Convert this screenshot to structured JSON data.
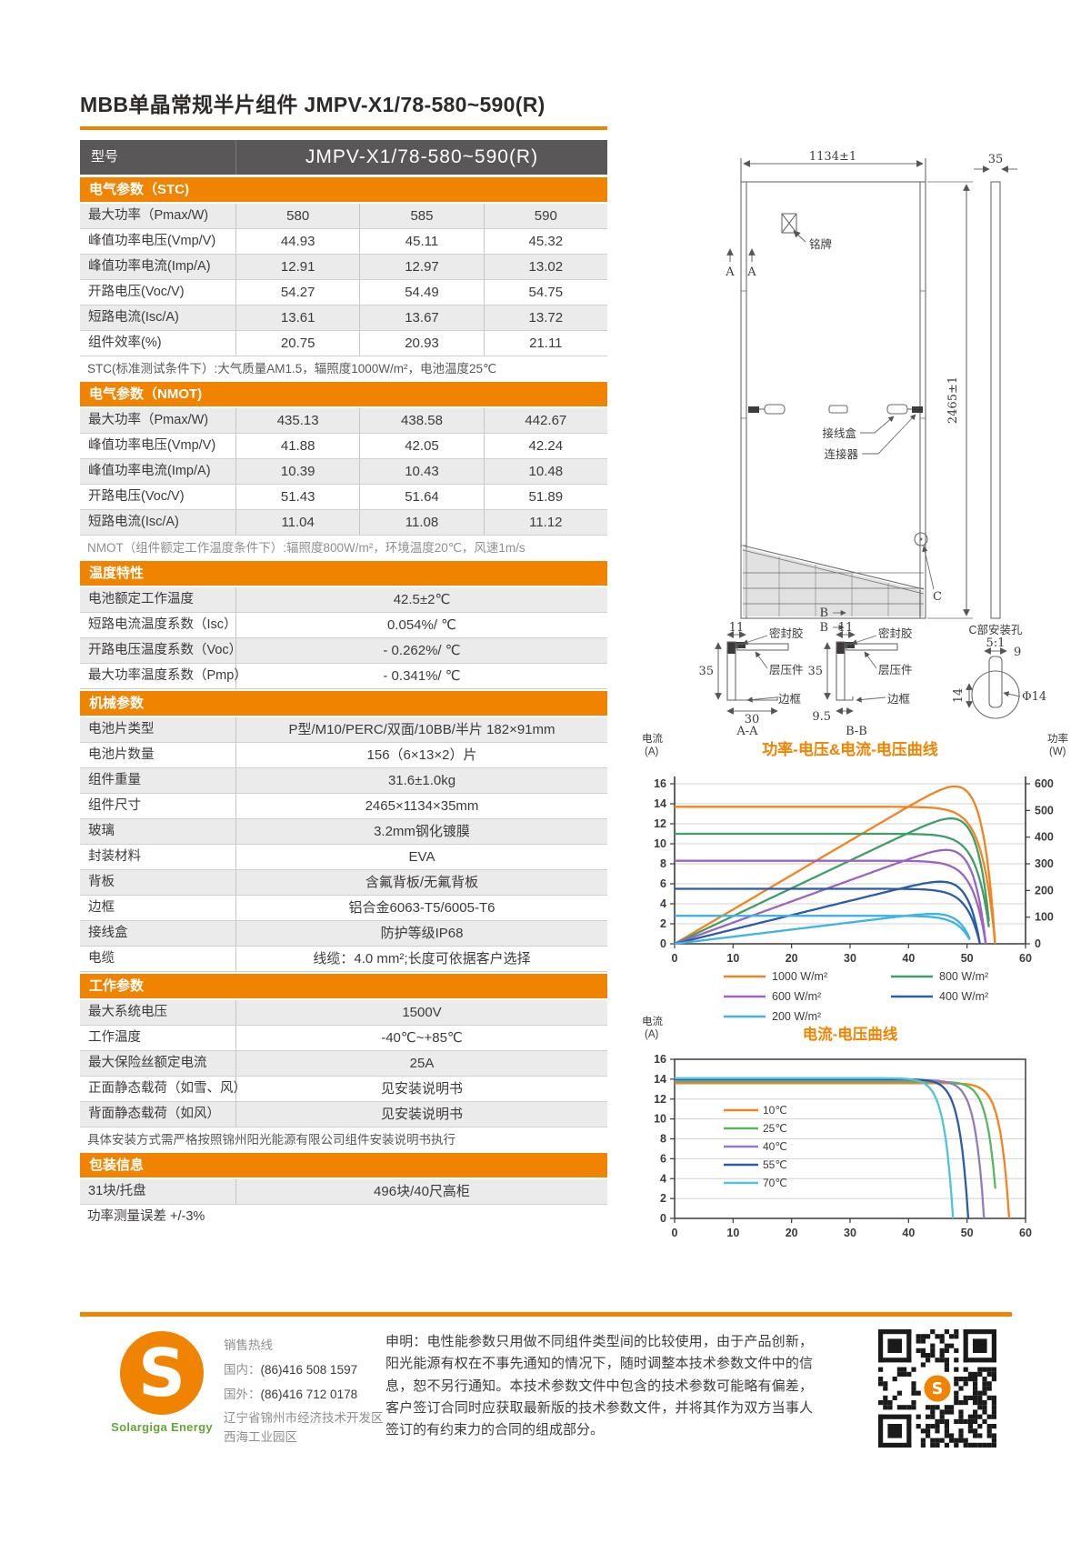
{
  "colors": {
    "accent": "#F08300",
    "header_dark": "#595757",
    "row_gray": "#EBEBEB",
    "text_dark": "#3E3A39",
    "logo_green": "#63A537"
  },
  "page_title": "MBB单晶常规半片组件 JMPV-X1/78-580~590(R)",
  "model_header": {
    "label": "型号",
    "value": "JMPV-X1/78-580~590(R)"
  },
  "spec_sections": [
    {
      "id": "stc",
      "header": "电气参数（STC)",
      "rows": [
        {
          "label": "最大功率（Pmax/W)",
          "values": [
            "580",
            "585",
            "590"
          ]
        },
        {
          "label": "峰值功率电压(Vmp/V)",
          "values": [
            "44.93",
            "45.11",
            "45.32"
          ]
        },
        {
          "label": "峰值功率电流(Imp/A)",
          "values": [
            "12.91",
            "12.97",
            "13.02"
          ]
        },
        {
          "label": "开路电压(Voc/V)",
          "values": [
            "54.27",
            "54.49",
            "54.75"
          ]
        },
        {
          "label": "短路电流(Isc/A)",
          "values": [
            "13.61",
            "13.67",
            "13.72"
          ]
        },
        {
          "label": "组件效率(%)",
          "values": [
            "20.75",
            "20.93",
            "21.11"
          ]
        }
      ],
      "note": "STC(标准测试条件下）:大气质量AM1.5，辐照度1000W/m²，电池温度25℃",
      "note_style": "dark"
    },
    {
      "id": "nmot",
      "header": "电气参数（NMOT)",
      "rows": [
        {
          "label": "最大功率（Pmax/W)",
          "values": [
            "435.13",
            "438.58",
            "442.67"
          ]
        },
        {
          "label": "峰值功率电压(Vmp/V)",
          "values": [
            "41.88",
            "42.05",
            "42.24"
          ]
        },
        {
          "label": "峰值功率电流(Imp/A)",
          "values": [
            "10.39",
            "10.43",
            "10.48"
          ]
        },
        {
          "label": "开路电压(Voc/V)",
          "values": [
            "51.43",
            "51.64",
            "51.89"
          ]
        },
        {
          "label": "短路电流(Isc/A)",
          "values": [
            "11.04",
            "11.08",
            "11.12"
          ]
        }
      ],
      "note": "NMOT（组件额定工作温度条件下）:辐照度800W/m²，环境温度20℃，风速1m/s",
      "note_style": "gray"
    },
    {
      "id": "temperature",
      "header": "温度特性",
      "rows": [
        {
          "label": "电池额定工作温度",
          "value": "42.5±2℃"
        },
        {
          "label": "短路电流温度系数（Isc）",
          "value": "0.054%/ ℃"
        },
        {
          "label": "开路电压温度系数（Voc）",
          "value": "- 0.262%/ ℃"
        },
        {
          "label": "最大功率温度系数（Pmp）",
          "value": "- 0.341%/ ℃"
        }
      ]
    },
    {
      "id": "mechanical",
      "header": "机械参数",
      "rows": [
        {
          "label": "电池片类型",
          "value": "P型/M10/PERC/双面/10BB/半片  182×91mm"
        },
        {
          "label": "电池片数量",
          "value": "156（6×13×2）片"
        },
        {
          "label": "组件重量",
          "value": "31.6±1.0kg"
        },
        {
          "label": "组件尺寸",
          "value": "2465×1134×35mm"
        },
        {
          "label": "玻璃",
          "value": "3.2mm钢化镀膜"
        },
        {
          "label": "封装材料",
          "value": "EVA"
        },
        {
          "label": "背板",
          "value": "含氟背板/无氟背板"
        },
        {
          "label": "边框",
          "value": "铝合金6063-T5/6005-T6"
        },
        {
          "label": "接线盒",
          "value": "防护等级IP68"
        },
        {
          "label": "电缆",
          "value": "线缆：4.0 mm²;长度可依据客户选择"
        }
      ]
    },
    {
      "id": "working",
      "header": "工作参数",
      "rows": [
        {
          "label": "最大系统电压",
          "value": "1500V"
        },
        {
          "label": "工作温度",
          "value": "-40℃~+85℃"
        },
        {
          "label": "最大保险丝额定电流",
          "value": "25A"
        },
        {
          "label": "正面静态载荷（如雪、风）",
          "value": "见安装说明书"
        },
        {
          "label": "背面静态载荷（如风）",
          "value": "见安装说明书"
        }
      ],
      "note": "具体安装方式需严格按照锦州阳光能源有限公司组件安装说明书执行",
      "note_style": "dark"
    },
    {
      "id": "packaging",
      "header": "包装信息",
      "rows": [
        {
          "label": "31块/托盘",
          "value": "496块/40尺高柜"
        }
      ],
      "note": "功率测量误差  +/-3%",
      "note_style": "darker"
    }
  ],
  "drawing": {
    "dim_width": "1134±1",
    "dim_thickness": "35",
    "dim_height": "2465±1",
    "nameplate": "铭牌",
    "section_a": "A",
    "junction_box": "接线盒",
    "connector": "连接器",
    "section_c": "C",
    "section_b": "B",
    "sealant": "密封胶",
    "laminate": "层压件",
    "frame": "边框",
    "aa": {
      "dim_top": "11",
      "dim_side": "35",
      "dim_bottom": "30",
      "title": "A-A"
    },
    "bb": {
      "dim_top": "11",
      "dim_side": "35",
      "dim_bottom": "9.5",
      "title": "B-B"
    },
    "hole": {
      "title": "C部安装孔",
      "scale": "5:1",
      "dim_top": "9",
      "dim_side": "14",
      "dim_dia": "Φ14"
    }
  },
  "chart_data": [
    {
      "type": "line",
      "title": "功率-电压&电流-电压曲线",
      "y_left_label": "电流",
      "y_left_unit": "(A)",
      "y_right_label": "功率",
      "y_right_unit": "(W)",
      "x_range": [
        0,
        60
      ],
      "x_tick_step": 10,
      "y_left_range": [
        0,
        16
      ],
      "y_left_tick_step": 2,
      "y_right_range": [
        0,
        600
      ],
      "y_right_tick_step": 100,
      "grid": true,
      "legend_position": "bottom",
      "series": [
        {
          "name": "1000 W/m²",
          "color": "#F5821F",
          "isc": 13.7,
          "voc": 54.8,
          "pmax": 590
        },
        {
          "name": "800 W/m²",
          "color": "#3F9E68",
          "isc": 11.0,
          "voc": 54.1,
          "pmax": 470
        },
        {
          "name": "600 W/m²",
          "color": "#9B64BE",
          "isc": 8.3,
          "voc": 53.2,
          "pmax": 352
        },
        {
          "name": "400 W/m²",
          "color": "#2B5CA8",
          "isc": 5.5,
          "voc": 52.2,
          "pmax": 233
        },
        {
          "name": "200 W/m²",
          "color": "#3FB3E3",
          "isc": 2.8,
          "voc": 50.8,
          "pmax": 112
        }
      ]
    },
    {
      "type": "line",
      "title": "电流-电压曲线",
      "y_left_label": "电流",
      "y_left_unit": "(A)",
      "x_range": [
        0,
        60
      ],
      "x_tick_step": 10,
      "y_left_range": [
        0,
        16
      ],
      "y_left_tick_step": 2,
      "grid": true,
      "legend_position": "inside-left",
      "series": [
        {
          "name": "10℃",
          "color": "#F5821F",
          "isc": 13.6,
          "voc": 57.2
        },
        {
          "name": "25℃",
          "color": "#57B75D",
          "isc": 13.75,
          "voc": 55.2
        },
        {
          "name": "40℃",
          "color": "#8F7BC0",
          "isc": 13.9,
          "voc": 52.9
        },
        {
          "name": "55℃",
          "color": "#2B5CA8",
          "isc": 14.0,
          "voc": 50.2
        },
        {
          "name": "70℃",
          "color": "#4EC4DB",
          "isc": 14.1,
          "voc": 47.6
        }
      ]
    }
  ],
  "footer": {
    "hotline_title": "销售热线",
    "phones": [
      {
        "label": "国内：",
        "number": "(86)416 508 1597"
      },
      {
        "label": "国外：",
        "number": "(86)416 712 0178"
      }
    ],
    "address": "辽宁省锦州市经济技术开发区西海工业园区",
    "logo_letter": "S",
    "logo_text": "Solargiga Energy",
    "disclaimer": "申明：电性能参数只用做不同组件类型间的比较使用，由于产品创新，阳光能源有权在不事先通知的情况下，随时调整本技术参数文件中的信息，恕不另行通知。本技术参数文件中包含的技术参数可能略有偏差，客户签订合同时应获取最新版的技术参数文件，并将其作为双方当事人签订的有约束力的合同的组成部分。"
  }
}
